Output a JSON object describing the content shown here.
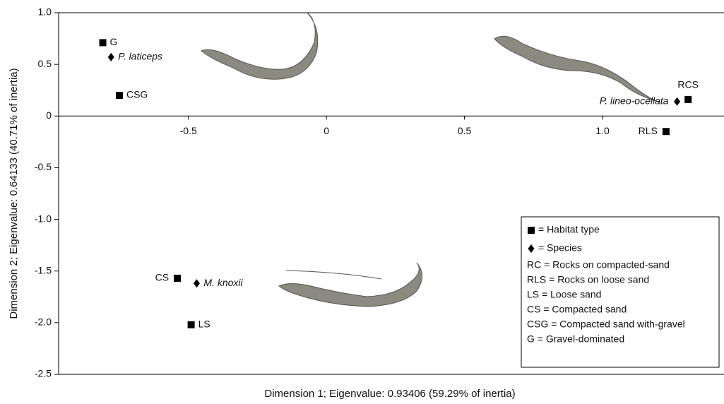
{
  "chart_data": {
    "type": "scatter",
    "xlabel": "Dimension 1; Eigenvalue: 0.93406 (59.29% of inertia)",
    "ylabel": "Dimension 2; Eigenvalue: 0.64133 (40.71% of inertia)",
    "xlim": [
      -0.97,
      1.44
    ],
    "ylim": [
      -2.5,
      1.0
    ],
    "xticks": [
      -0.5,
      0,
      0.5,
      {
        "value": 1,
        "label": "1.0"
      }
    ],
    "yticks": [
      {
        "value": 1,
        "label": "1.0"
      },
      0.5,
      0,
      -0.5,
      {
        "value": -1,
        "label": "-1.0"
      },
      -1.5,
      {
        "value": -2,
        "label": "-2.0"
      },
      -2.5
    ],
    "series": [
      {
        "name": "= Habitat type",
        "marker": "square",
        "color": "#000000",
        "labels": [
          "G",
          "CSG",
          "RCS",
          "RLS",
          "CS",
          "LS"
        ],
        "x": [
          -0.81,
          -0.75,
          1.31,
          1.23,
          -0.54,
          -0.49
        ],
        "values": [
          0.71,
          0.2,
          0.16,
          -0.15,
          -1.57,
          -2.02
        ]
      },
      {
        "name": "= Species",
        "marker": "diamond",
        "color": "#000000",
        "labels": [
          "P. laticeps",
          "P. lineo-ocellata",
          "M. knoxii"
        ],
        "x": [
          -0.78,
          1.27,
          -0.47
        ],
        "values": [
          0.57,
          0.14,
          -1.62
        ]
      }
    ],
    "legend_notes": [
      "RC = Rocks on compacted-sand",
      "RLS = Rocks on loose sand",
      "LS = Loose sand",
      "CS = Compacted sand",
      "CSG = Compacted sand with-gravel",
      "G = Gravel-dominated"
    ]
  }
}
